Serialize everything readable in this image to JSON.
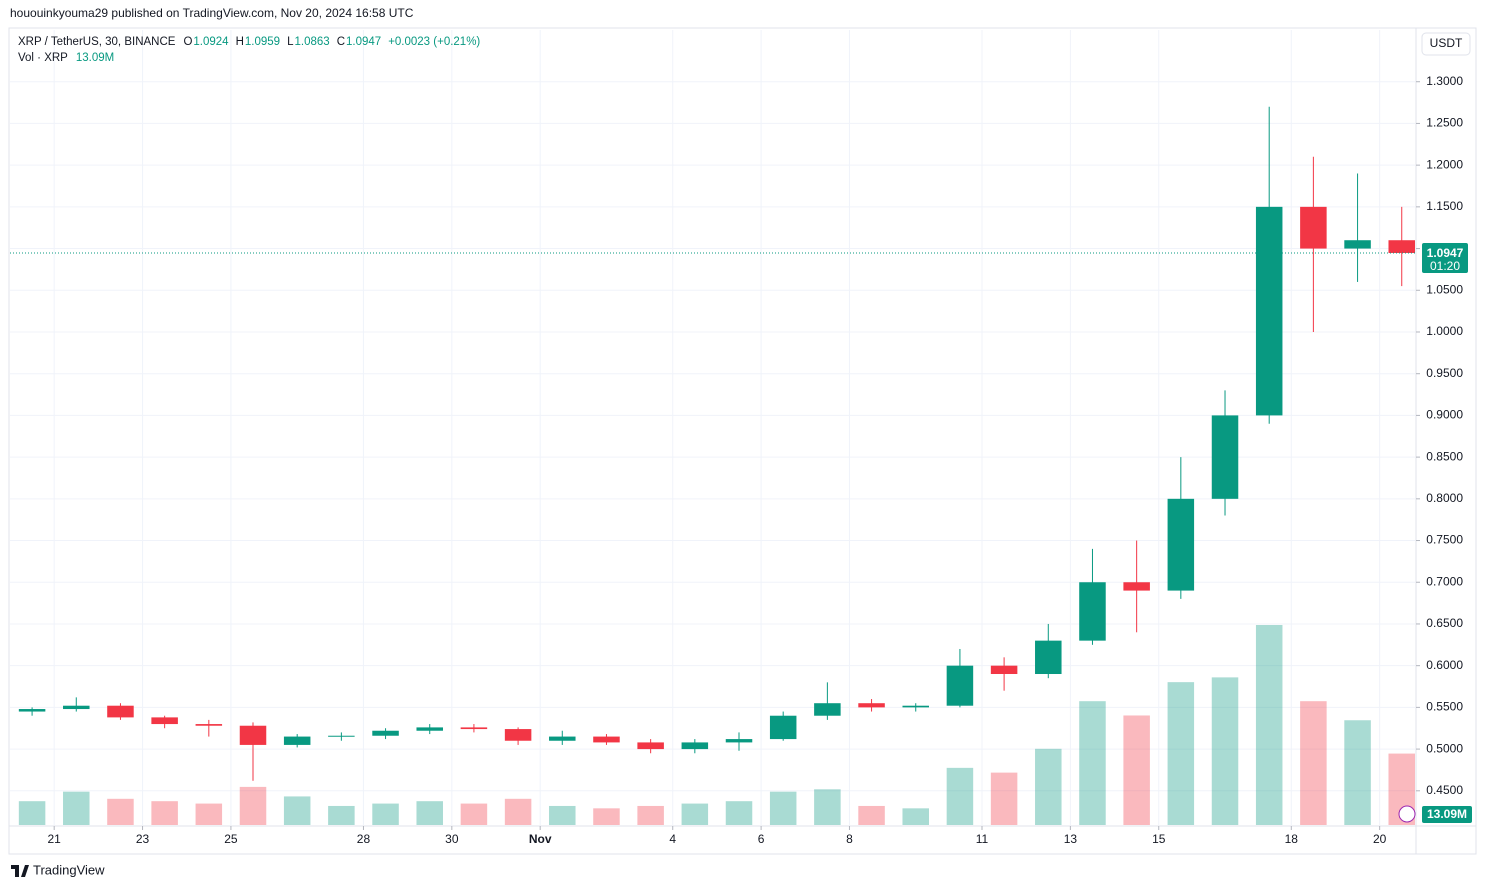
{
  "header": {
    "byline": "hououinkyouma29 published on TradingView.com, Nov 20, 2024 16:58 UTC"
  },
  "chart_data": {
    "type": "candlestick",
    "symbol": "XRP / TetherUS, 30, BINANCE",
    "ohlc": [
      {
        "label": "O",
        "value": "1.0924"
      },
      {
        "label": "H",
        "value": "1.0959"
      },
      {
        "label": "L",
        "value": "1.0863"
      },
      {
        "label": "C",
        "value": "1.0947"
      }
    ],
    "change": "+0.0023 (+0.21%)",
    "volume_title": "Vol · XRP",
    "volume_value": "13.09M",
    "currency": "USDT",
    "last_price": {
      "value": 1.0947,
      "label": "1.0947"
    },
    "countdown": "01:20",
    "up_color": "#089981",
    "down_color": "#f23645",
    "x": [
      0.5,
      1.5,
      2.5,
      3.5,
      4.5,
      5.5,
      6.5,
      7.5,
      8.5,
      9.5,
      10.5,
      11.5,
      12.5,
      13.5,
      14.5,
      15.5,
      16.5,
      17.5,
      18.5,
      19.5,
      20.5,
      21.5,
      22.5,
      23.5,
      24.5,
      25.5,
      26.5,
      27.5,
      28.5,
      29.5,
      30.5,
      31.5
    ],
    "open": [
      0.545,
      0.548,
      0.552,
      0.538,
      0.53,
      0.528,
      0.505,
      0.515,
      0.516,
      0.522,
      0.526,
      0.524,
      0.51,
      0.515,
      0.508,
      0.5,
      0.508,
      0.512,
      0.54,
      0.555,
      0.55,
      0.552,
      0.6,
      0.59,
      0.63,
      0.7,
      0.69,
      0.8,
      0.9,
      1.15,
      1.1,
      1.11
    ],
    "high": [
      0.55,
      0.562,
      0.555,
      0.54,
      0.535,
      0.532,
      0.518,
      0.52,
      0.525,
      0.53,
      0.53,
      0.526,
      0.522,
      0.518,
      0.512,
      0.512,
      0.52,
      0.545,
      0.58,
      0.56,
      0.555,
      0.62,
      0.61,
      0.65,
      0.74,
      0.75,
      0.85,
      0.93,
      1.27,
      1.21,
      1.19,
      1.15
    ],
    "low": [
      0.54,
      0.545,
      0.535,
      0.525,
      0.515,
      0.462,
      0.502,
      0.51,
      0.512,
      0.518,
      0.52,
      0.505,
      0.505,
      0.505,
      0.495,
      0.495,
      0.498,
      0.51,
      0.535,
      0.545,
      0.545,
      0.55,
      0.57,
      0.585,
      0.625,
      0.64,
      0.68,
      0.78,
      0.89,
      1.0,
      1.06,
      1.055
    ],
    "close": [
      0.548,
      0.552,
      0.538,
      0.53,
      0.528,
      0.505,
      0.515,
      0.516,
      0.522,
      0.526,
      0.524,
      0.51,
      0.515,
      0.508,
      0.5,
      0.508,
      0.512,
      0.54,
      0.555,
      0.55,
      0.552,
      0.6,
      0.59,
      0.63,
      0.7,
      0.69,
      0.8,
      0.9,
      1.15,
      1.1,
      1.11,
      1.0947
    ],
    "volume": [
      50,
      70,
      55,
      50,
      45,
      80,
      60,
      40,
      45,
      50,
      45,
      55,
      40,
      35,
      40,
      45,
      50,
      70,
      75,
      40,
      35,
      120,
      110,
      160,
      260,
      230,
      300,
      310,
      420,
      260,
      220,
      150
    ],
    "xlim": [
      0,
      31.8
    ],
    "xticks": [
      {
        "value": 1,
        "label": "21"
      },
      {
        "value": 3,
        "label": "23"
      },
      {
        "value": 5,
        "label": "25"
      },
      {
        "value": 8,
        "label": "28"
      },
      {
        "value": 10,
        "label": "30"
      },
      {
        "value": 12,
        "label": "Nov"
      },
      {
        "value": 15,
        "label": "4"
      },
      {
        "value": 17,
        "label": "6"
      },
      {
        "value": 19,
        "label": "8"
      },
      {
        "value": 22,
        "label": "11"
      },
      {
        "value": 24,
        "label": "13"
      },
      {
        "value": 26,
        "label": "15"
      },
      {
        "value": 29,
        "label": "18"
      },
      {
        "value": 31,
        "label": "20"
      }
    ],
    "ylim": [
      0.409,
      1.362
    ],
    "yticks": [
      {
        "value": 0.45,
        "label": "0.4500"
      },
      {
        "value": 0.5,
        "label": "0.5000"
      },
      {
        "value": 0.55,
        "label": "0.5500"
      },
      {
        "value": 0.6,
        "label": "0.6000"
      },
      {
        "value": 0.65,
        "label": "0.6500"
      },
      {
        "value": 0.7,
        "label": "0.7000"
      },
      {
        "value": 0.75,
        "label": "0.7500"
      },
      {
        "value": 0.8,
        "label": "0.8000"
      },
      {
        "value": 0.85,
        "label": "0.8500"
      },
      {
        "value": 0.9,
        "label": "0.9000"
      },
      {
        "value": 0.95,
        "label": "0.9500"
      },
      {
        "value": 1.0,
        "label": "1.0000"
      },
      {
        "value": 1.05,
        "label": "1.0500"
      },
      {
        "value": 1.1,
        "label": "1.1000"
      },
      {
        "value": 1.15,
        "label": "1.1500"
      },
      {
        "value": 1.2,
        "label": "1.2000"
      },
      {
        "value": 1.25,
        "label": "1.2500"
      },
      {
        "value": 1.3,
        "label": "1.3000"
      }
    ],
    "grid": true
  },
  "footer": {
    "logo": "TradingView"
  }
}
